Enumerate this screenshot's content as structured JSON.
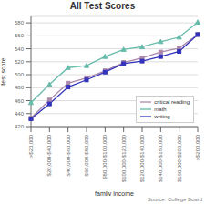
{
  "chart_data": {
    "type": "line",
    "title": "All Test Scores",
    "xlabel": "family income",
    "ylabel": "test score",
    "annotations": [
      "Source: College Board"
    ],
    "categories": [
      ">$20,000",
      "$20,000-$40,000",
      "$40,000-$60,000",
      "$60,000-$80,000",
      "$80,000-$100,000",
      "$100,000-$120,000",
      "$120,000-$140,000",
      "$140,000-$160,000",
      "$160,000-$200,000",
      ">$200,000"
    ],
    "series": [
      {
        "name": "critical reading",
        "color": "#aa88aa",
        "marker": "square",
        "values": [
          433,
          461,
          487,
          495,
          506,
          519,
          526,
          535,
          541,
          562
        ]
      },
      {
        "name": "math",
        "color": "#66bbaa",
        "marker": "triangle",
        "values": [
          457,
          485,
          511,
          514,
          528,
          539,
          543,
          551,
          558,
          581
        ]
      },
      {
        "name": "writing",
        "color": "#3333bb",
        "marker": "square",
        "values": [
          432,
          455,
          481,
          492,
          504,
          517,
          521,
          528,
          536,
          562
        ]
      }
    ],
    "ylim": [
      420,
      590
    ],
    "yticks": [
      420,
      440,
      460,
      480,
      500,
      520,
      540,
      560,
      580
    ],
    "grid": true,
    "legend": "lower right"
  }
}
